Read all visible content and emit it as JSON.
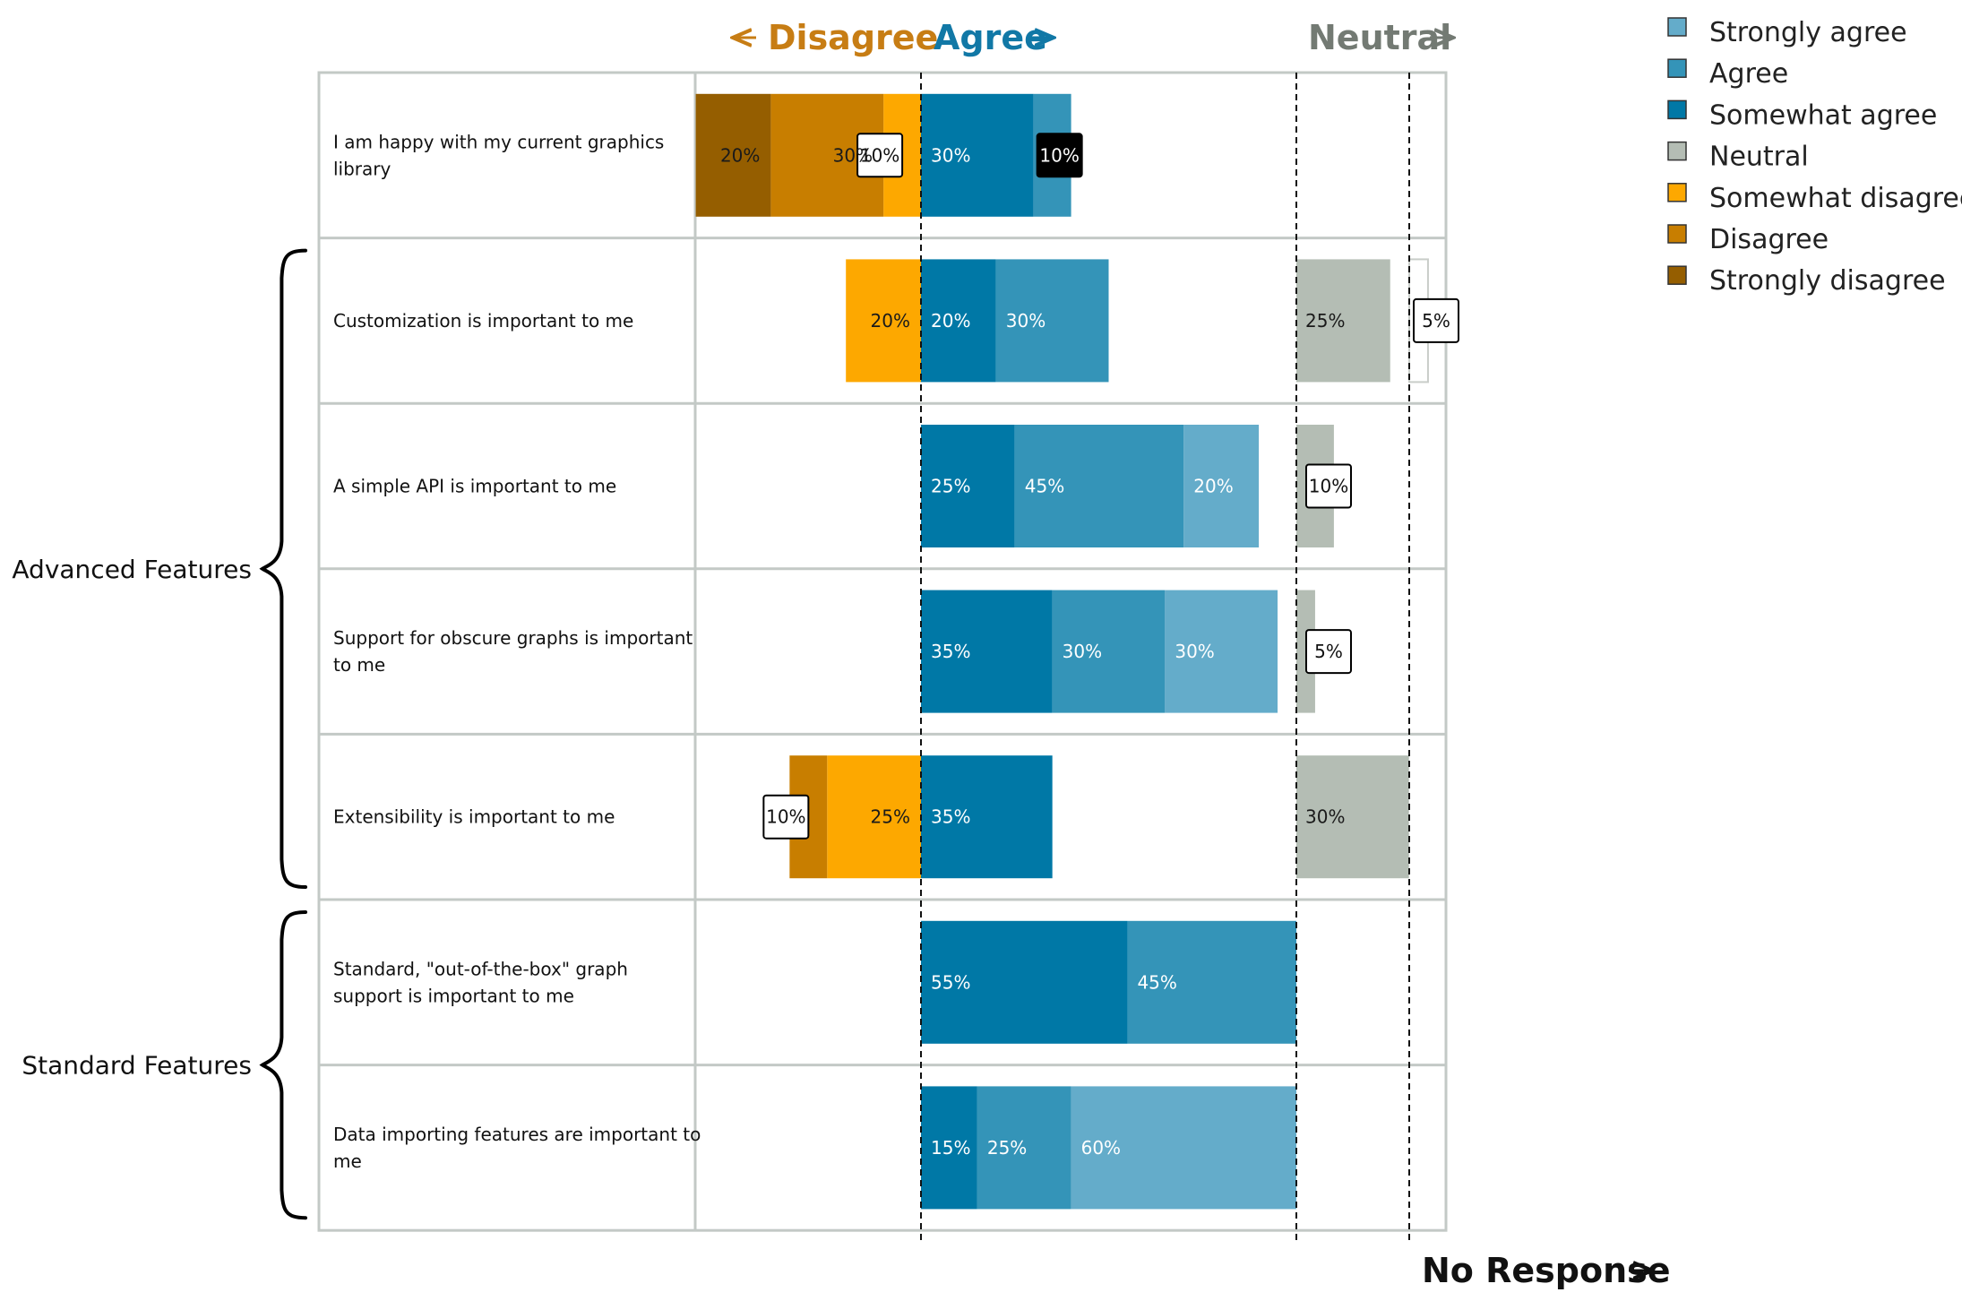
{
  "chart_data": {
    "type": "bar",
    "layout": "diverging-stacked-horizontal",
    "headers": {
      "disagree": "Disagree",
      "agree": "Agree",
      "neutral": "Neutral",
      "no_response": "No Response"
    },
    "series": [
      {
        "key": "strongly_agree",
        "name": "Strongly agree",
        "color": "#64acca"
      },
      {
        "key": "agree",
        "name": "Agree",
        "color": "#3494b8"
      },
      {
        "key": "somewhat_agree",
        "name": "Somewhat agree",
        "color": "#0078a6"
      },
      {
        "key": "neutral",
        "name": "Neutral",
        "color": "#b4bdb4"
      },
      {
        "key": "somewhat_disagree",
        "name": "Somewhat disagree",
        "color": "#fda800"
      },
      {
        "key": "disagree",
        "name": "Disagree",
        "color": "#c87e00"
      },
      {
        "key": "strongly_disagree",
        "name": "Strongly disagree",
        "color": "#955e00"
      }
    ],
    "colors": {
      "disagree_header": "#c77d14",
      "agree_header": "#1178a6",
      "neutral_header": "#737a73",
      "no_response_header": "#111111",
      "grid": "#c3c9c6"
    },
    "questions": [
      {
        "text": [
          "I am happy with my current graphics",
          "library"
        ],
        "strongly_disagree": 20,
        "disagree": 30,
        "somewhat_disagree": 10,
        "somewhat_agree": 30,
        "agree": 10,
        "strongly_agree": 0,
        "neutral": 0,
        "no_response": 0
      },
      {
        "text": [
          "Customization is important to me"
        ],
        "strongly_disagree": 0,
        "disagree": 0,
        "somewhat_disagree": 20,
        "somewhat_agree": 20,
        "agree": 30,
        "strongly_agree": 0,
        "neutral": 25,
        "no_response": 5
      },
      {
        "text": [
          "A simple API is important to me"
        ],
        "strongly_disagree": 0,
        "disagree": 0,
        "somewhat_disagree": 0,
        "somewhat_agree": 25,
        "agree": 45,
        "strongly_agree": 20,
        "neutral": 10,
        "no_response": 0
      },
      {
        "text": [
          "Support for obscure graphs is important",
          "to me"
        ],
        "strongly_disagree": 0,
        "disagree": 0,
        "somewhat_disagree": 0,
        "somewhat_agree": 35,
        "agree": 30,
        "strongly_agree": 30,
        "neutral": 5,
        "no_response": 0
      },
      {
        "text": [
          "Extensibility is important to me"
        ],
        "strongly_disagree": 0,
        "disagree": 10,
        "somewhat_disagree": 25,
        "somewhat_agree": 35,
        "agree": 0,
        "strongly_agree": 0,
        "neutral": 30,
        "no_response": 0
      },
      {
        "text": [
          "Standard, \"out-of-the-box\" graph",
          "support is important to me"
        ],
        "strongly_disagree": 0,
        "disagree": 0,
        "somewhat_disagree": 0,
        "somewhat_agree": 55,
        "agree": 45,
        "strongly_agree": 0,
        "neutral": 0,
        "no_response": 0
      },
      {
        "text": [
          "Data importing features are important to",
          "me"
        ],
        "strongly_disagree": 0,
        "disagree": 0,
        "somewhat_disagree": 0,
        "somewhat_agree": 15,
        "agree": 25,
        "strongly_agree": 60,
        "neutral": 0,
        "no_response": 0
      }
    ],
    "groups": [
      {
        "label": "Advanced Features",
        "from_row": 1,
        "to_row": 4
      },
      {
        "label": "Standard Features",
        "from_row": 5,
        "to_row": 6
      }
    ]
  }
}
